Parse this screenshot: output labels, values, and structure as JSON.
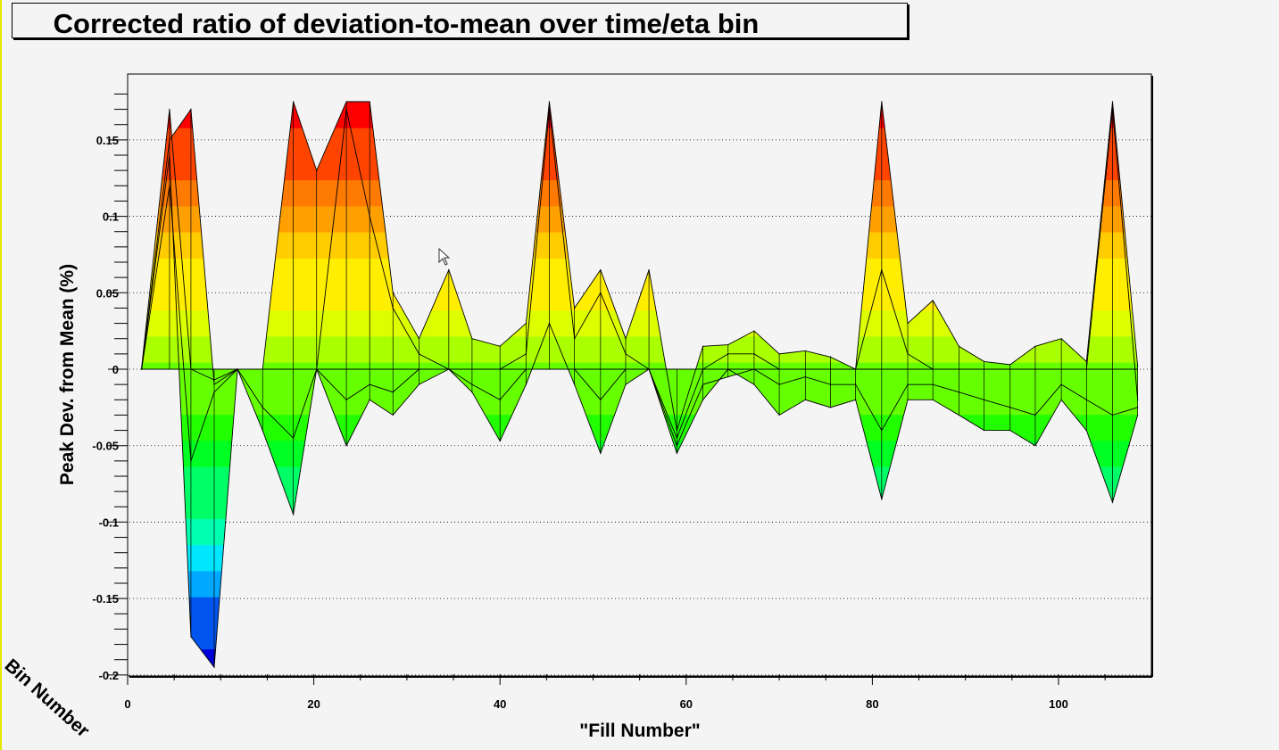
{
  "chart_data": {
    "type": "area",
    "title": "Corrected ratio of deviation-to-mean over time/eta bin",
    "xlabel": "\"Fill Number\"",
    "ylabel": "Peak Dev. from Mean (%)",
    "zlabel": "Bin Number",
    "xlim": [
      0,
      110
    ],
    "ylim": [
      -0.2,
      0.19
    ],
    "x_ticks": [
      0,
      20,
      40,
      60,
      80,
      100
    ],
    "y_ticks": [
      -0.2,
      -0.15,
      -0.1,
      -0.05,
      0,
      0.05,
      0.1,
      0.15
    ],
    "y_tick_labels": [
      "-0.2",
      "-0.15",
      "-0.1",
      "-0.05",
      "0",
      "0.05",
      "0.1",
      "0.15"
    ],
    "grid": "dotted",
    "colormap": [
      "#0000d8",
      "#0055ee",
      "#00a8ff",
      "#00e6ff",
      "#00ffb0",
      "#00ff66",
      "#00ff22",
      "#22ff00",
      "#66ff00",
      "#aaff00",
      "#dcff00",
      "#ffee00",
      "#ffcc00",
      "#ffa000",
      "#ff7a00",
      "#ff4400",
      "#ff0000"
    ],
    "series": [
      {
        "x": [
          1.5,
          4.5,
          6.8,
          9.3,
          11.8,
          14.5,
          17.8,
          20.3,
          23.5,
          26.0,
          28.5,
          31.3,
          34.5,
          37.0,
          40.0,
          42.8,
          45.3,
          48.0,
          50.8,
          53.5,
          56.0,
          59.0,
          61.8,
          64.5,
          67.3,
          70.0,
          72.8,
          75.5,
          78.2,
          81.0,
          83.8,
          86.5,
          89.3,
          92.0,
          94.8,
          97.5,
          100.3,
          103.0,
          105.8,
          108.5
        ],
        "y": [
          0.001,
          0.17,
          0.0,
          -0.007,
          0.0,
          0.0,
          0.19,
          0.13,
          0.19,
          0.19,
          0.05,
          0.02,
          0.065,
          0.02,
          0.015,
          0.03,
          0.18,
          0.04,
          0.065,
          0.02,
          0.065,
          -0.04,
          0.015,
          0.016,
          0.025,
          0.01,
          0.012,
          0.008,
          0.0,
          0.18,
          0.03,
          0.045,
          0.015,
          0.005,
          0.003,
          0.015,
          0.02,
          0.005,
          0.18,
          0.002
        ]
      },
      {
        "x": [
          1.5,
          4.5,
          6.8,
          9.3,
          11.8,
          14.5,
          17.8,
          20.3,
          23.5,
          26.0,
          28.5,
          31.3,
          34.5,
          37.0,
          40.0,
          42.8,
          45.3,
          48.0,
          50.8,
          53.5,
          56.0,
          59.0,
          61.8,
          64.5,
          67.3,
          70.0,
          72.8,
          75.5,
          78.2,
          81.0,
          83.8,
          86.5,
          89.3,
          92.0,
          94.8,
          97.5,
          100.3,
          103.0,
          105.8,
          108.5
        ],
        "y": [
          0.0,
          0.14,
          -0.175,
          -0.195,
          0.0,
          -0.04,
          -0.095,
          0.0,
          -0.05,
          -0.02,
          -0.03,
          -0.01,
          0.0,
          -0.015,
          -0.047,
          -0.01,
          0.03,
          -0.01,
          -0.055,
          -0.01,
          0.0,
          -0.055,
          -0.02,
          0.0,
          -0.01,
          -0.03,
          -0.02,
          -0.025,
          -0.02,
          -0.085,
          -0.02,
          -0.02,
          -0.03,
          -0.04,
          -0.04,
          -0.05,
          -0.02,
          -0.04,
          -0.087,
          -0.03
        ]
      },
      {
        "x": [
          1.5,
          4.5,
          6.8,
          9.3,
          11.8,
          14.5,
          17.8,
          20.3,
          23.5,
          26.0,
          28.5,
          31.3,
          34.5,
          37.0,
          40.0,
          42.8,
          45.3,
          48.0,
          50.8,
          53.5,
          56.0,
          59.0,
          61.8,
          64.5,
          67.3,
          70.0,
          72.8,
          75.5,
          78.2,
          81.0,
          83.8,
          86.5,
          89.3,
          92.0,
          94.8,
          97.5,
          100.3,
          103.0,
          105.8,
          108.5
        ],
        "y": [
          0.0,
          0.15,
          0.17,
          -0.01,
          0.0,
          0.0,
          0.0,
          0.0,
          0.17,
          0.1,
          0.04,
          0.01,
          0.0,
          0.0,
          0.0,
          0.01,
          0.17,
          0.02,
          0.05,
          0.01,
          0.0,
          -0.045,
          0.0,
          0.01,
          0.01,
          0.0,
          0.0,
          0.0,
          0.0,
          0.065,
          0.01,
          0.0,
          0.0,
          0.0,
          0.0,
          0.0,
          0.0,
          0.0,
          0.17,
          -0.02
        ]
      },
      {
        "x": [
          1.5,
          4.5,
          6.8,
          9.3,
          11.8,
          14.5,
          17.8,
          20.3,
          23.5,
          26.0,
          28.5,
          31.3,
          34.5,
          37.0,
          40.0,
          42.8,
          45.3,
          48.0,
          50.8,
          53.5,
          56.0,
          59.0,
          61.8,
          64.5,
          67.3,
          70.0,
          72.8,
          75.5,
          78.2,
          81.0,
          83.8,
          86.5,
          89.3,
          92.0,
          94.8,
          97.5,
          100.3,
          103.0,
          105.8,
          108.5
        ],
        "y": [
          0.0,
          0.12,
          -0.06,
          -0.015,
          0.0,
          -0.025,
          -0.045,
          0.0,
          -0.02,
          -0.01,
          -0.015,
          0.0,
          0.0,
          -0.01,
          -0.02,
          0.0,
          0.0,
          0.0,
          -0.02,
          0.0,
          0.0,
          -0.05,
          -0.01,
          -0.005,
          0.0,
          -0.01,
          -0.005,
          -0.01,
          -0.01,
          -0.04,
          -0.01,
          -0.01,
          -0.015,
          -0.02,
          -0.025,
          -0.03,
          -0.01,
          -0.02,
          -0.03,
          -0.025
        ]
      }
    ]
  }
}
